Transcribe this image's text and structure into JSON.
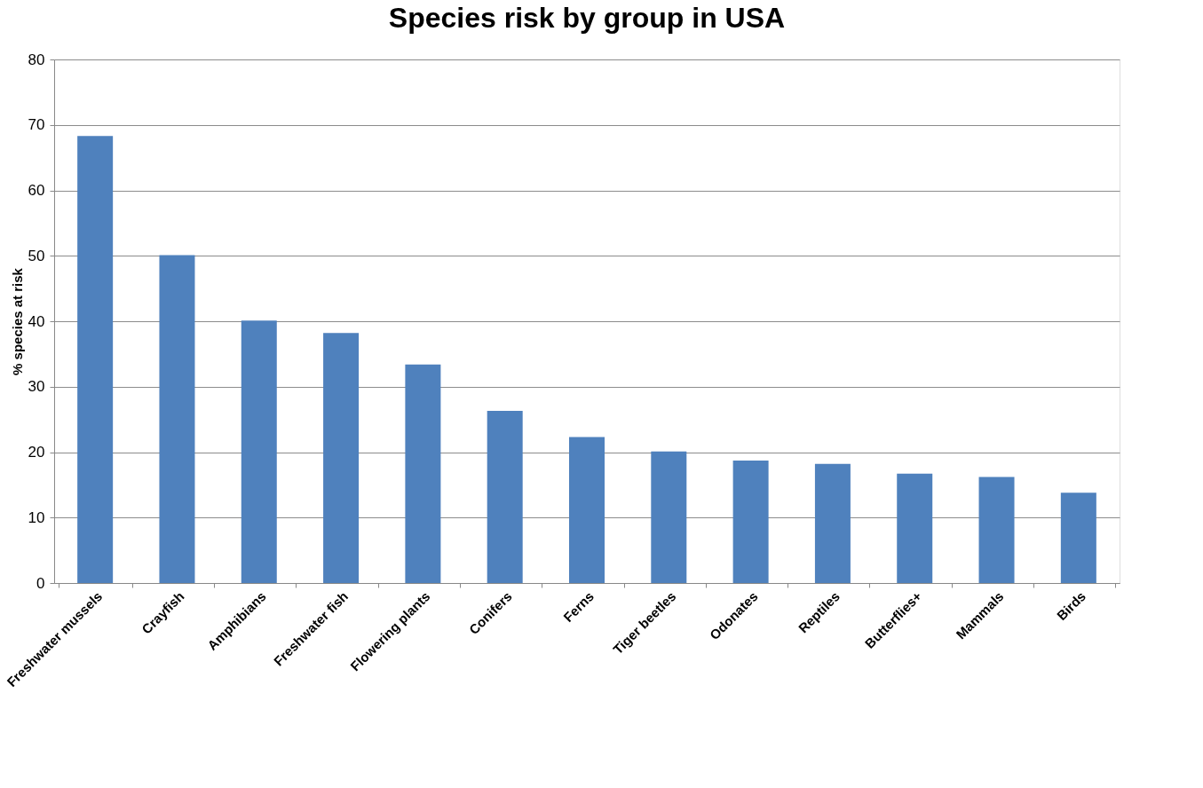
{
  "chart_data": {
    "type": "bar",
    "title": "Species risk by group in USA",
    "ylabel": "% species at risk",
    "categories": [
      "Freshwater mussels",
      "Crayfish",
      "Amphibians",
      "Freshwater fish",
      "Flowering plants",
      "Conifers",
      "Ferns",
      "Tiger beetles",
      "Odonates",
      "Reptiles",
      "Butterflies+",
      "Mammals",
      "Birds"
    ],
    "values": [
      68.3,
      50.1,
      40.1,
      38.2,
      33.4,
      26.3,
      22.3,
      20.1,
      18.7,
      18.2,
      16.7,
      16.2,
      13.8
    ],
    "color": "#4f81bd",
    "ylim": [
      0,
      80
    ],
    "yticks": [
      0,
      10,
      20,
      30,
      40,
      50,
      60,
      70,
      80
    ],
    "grid": "y"
  }
}
